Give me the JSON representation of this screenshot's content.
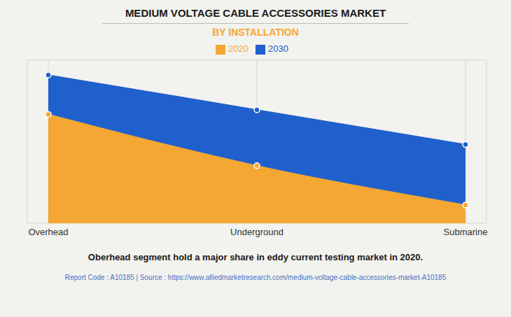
{
  "chart_data": {
    "type": "area",
    "title": "MEDIUM VOLTAGE CABLE ACCESSORIES MARKET",
    "subtitle": "BY INSTALLATION",
    "categories": [
      "Overhead",
      "Underground",
      "Submarine"
    ],
    "series": [
      {
        "name": "2020",
        "color": "#F5A733",
        "marker": "circle",
        "values": [
          0.72,
          0.38,
          0.12
        ]
      },
      {
        "name": "2030",
        "color": "#2060CC",
        "marker": "circle",
        "values": [
          0.98,
          0.75,
          0.52
        ]
      }
    ],
    "ylim": [
      0,
      1.08
    ],
    "yticks": [
      0,
      0.27,
      0.54,
      0.81,
      1.08
    ],
    "grid": true,
    "tick_labels": "x",
    "legend": "top",
    "annotations": [
      "Oberhead segment hold a major share in eddy current testing market in 2020.",
      "Report Code : A10185  |  Source : https://www.alliedmarketresearch.com/medium-voltage-cable-accessories-market-A10185"
    ]
  }
}
